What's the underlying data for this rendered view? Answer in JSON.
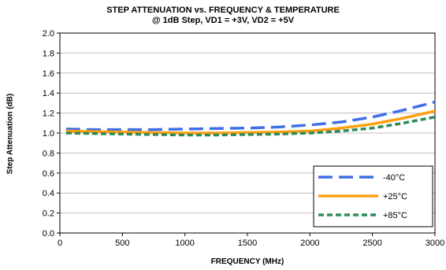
{
  "chart_data": {
    "type": "line",
    "title": "STEP ATTENUATION vs. FREQUENCY & TEMPERATURE",
    "subtitle": "@ 1dB Step, VD1 = +3V, VD2 = +5V",
    "xlabel": "FREQUENCY (MHz)",
    "ylabel": "Step Attenuation (dB)",
    "xlim": [
      0,
      3000
    ],
    "ylim": [
      0.0,
      2.0
    ],
    "xticks": [
      "0",
      "500",
      "1000",
      "1500",
      "2000",
      "2500",
      "3000"
    ],
    "yticks": [
      "0.0",
      "0.2",
      "0.4",
      "0.6",
      "0.8",
      "1.0",
      "1.2",
      "1.4",
      "1.6",
      "1.8",
      "2.0"
    ],
    "grid": "horizontal",
    "legend_position": "bottom-right",
    "series": [
      {
        "name": "-40°C",
        "color": "#3f6fe8",
        "dash": "long-dash",
        "x": [
          50,
          250,
          500,
          750,
          1000,
          1250,
          1500,
          1750,
          2000,
          2250,
          2500,
          2750,
          3000
        ],
        "values": [
          1.04,
          1.035,
          1.035,
          1.035,
          1.04,
          1.045,
          1.05,
          1.06,
          1.08,
          1.11,
          1.16,
          1.23,
          1.31
        ]
      },
      {
        "name": "+25°C",
        "color": "#ff9f10",
        "dash": "solid",
        "x": [
          50,
          250,
          500,
          750,
          1000,
          1250,
          1500,
          1750,
          2000,
          2250,
          2500,
          2750,
          3000
        ],
        "values": [
          1.02,
          1.015,
          1.01,
          1.005,
          1.0,
          1.0,
          1.005,
          1.01,
          1.02,
          1.05,
          1.09,
          1.15,
          1.22
        ]
      },
      {
        "name": "+85°C",
        "color": "#2e8b57",
        "dash": "short-dash",
        "x": [
          50,
          250,
          500,
          750,
          1000,
          1250,
          1500,
          1750,
          2000,
          2250,
          2500,
          2750,
          3000
        ],
        "values": [
          1.0,
          0.995,
          0.99,
          0.985,
          0.98,
          0.98,
          0.985,
          0.99,
          1.0,
          1.02,
          1.05,
          1.1,
          1.16
        ]
      }
    ]
  }
}
